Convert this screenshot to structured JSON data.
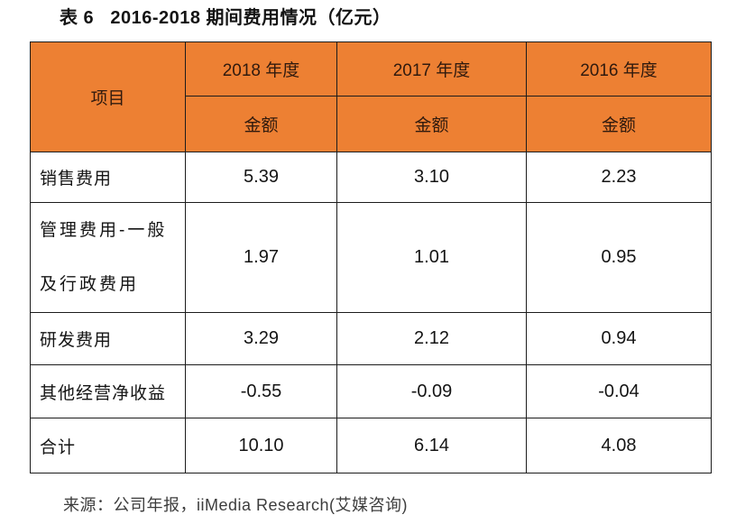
{
  "title": "表 6   2016-2018 期间费用情况（亿元）",
  "colors": {
    "header_bg": "#ed8033",
    "header_text": "#301a0e",
    "border": "#1c1c1c",
    "body_text": "#141414",
    "source_text": "#3c3c3c"
  },
  "table": {
    "item_header": "项目",
    "year_headers": [
      "2018 年度",
      "2017 年度",
      "2016 年度"
    ],
    "amount_headers": [
      "金额",
      "金额",
      "金额"
    ],
    "rows": [
      {
        "label": "销售费用",
        "values": [
          "5.39",
          "3.10",
          "2.23"
        ]
      },
      {
        "label": "管理费用-一般\n及行政费用",
        "values": [
          "1.97",
          "1.01",
          "0.95"
        ]
      },
      {
        "label": "研发费用",
        "values": [
          "3.29",
          "2.12",
          "0.94"
        ]
      },
      {
        "label": "其他经营净收益",
        "values": [
          "-0.55",
          "-0.09",
          "-0.04"
        ]
      },
      {
        "label": "合计",
        "values": [
          "10.10",
          "6.14",
          "4.08"
        ]
      }
    ]
  },
  "source": "来源：公司年报，iiMedia Research(艾媒咨询)"
}
